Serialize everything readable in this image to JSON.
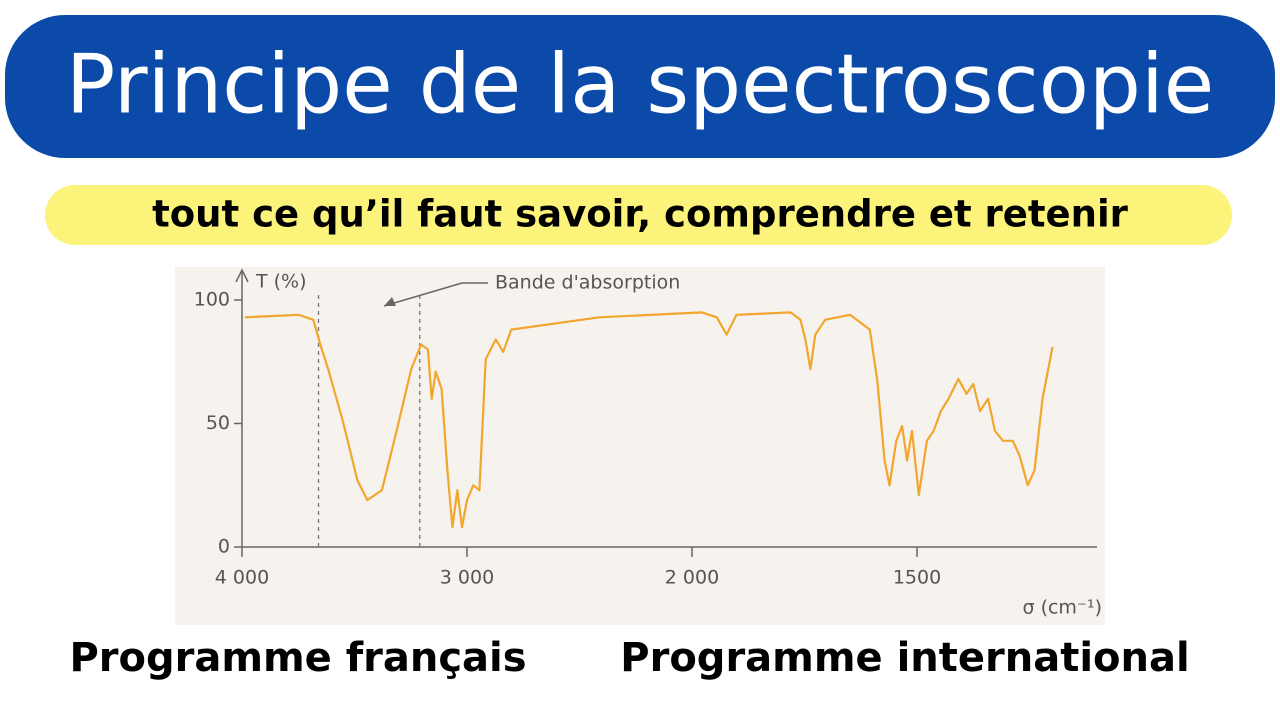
{
  "header": {
    "title": "Principe de la spectroscopie",
    "subtitle": "tout ce qu’il faut savoir, comprendre et retenir"
  },
  "chart_data": {
    "type": "line",
    "ylabel": "T (%)",
    "xlabel": "σ (cm⁻¹)",
    "annotation": "Bande d'absorption",
    "xlim": [
      4000,
      1100
    ],
    "ylim": [
      0,
      100
    ],
    "xticks": [
      {
        "value": 4000,
        "label": "4 000"
      },
      {
        "value": 3000,
        "label": "3 000"
      },
      {
        "value": 2000,
        "label": "2 000"
      },
      1500
    ],
    "yticks": [
      0,
      50,
      100
    ],
    "reference_lines": [
      3660,
      3210
    ],
    "series": [
      {
        "color": "#f2a62e",
        "x": [
          3987,
          3748,
          3683,
          3652,
          3617,
          3552,
          3487,
          3443,
          3378,
          3313,
          3248,
          3204,
          3174,
          3157,
          3139,
          3113,
          3087,
          3065,
          3043,
          3022,
          3000,
          2972,
          2945,
          2917,
          2872,
          2839,
          2803,
          2413,
          1978,
          1945,
          1923,
          1901,
          1781,
          1759,
          1748,
          1737,
          1726,
          1704,
          1649,
          1605,
          1588,
          1572,
          1561,
          1546,
          1533,
          1522,
          1511,
          1496,
          1478,
          1463,
          1447,
          1430,
          1408,
          1390,
          1375,
          1360,
          1342,
          1327,
          1309,
          1287,
          1272,
          1254,
          1239,
          1221,
          1199
        ],
        "values": [
          93,
          94,
          92,
          82,
          72,
          51,
          27,
          19,
          23,
          47,
          72,
          82,
          80,
          60,
          71,
          64,
          31,
          8,
          23,
          8,
          19,
          25,
          23,
          76,
          84,
          79,
          88,
          93,
          95,
          93,
          86,
          94,
          95,
          92,
          84,
          72,
          86,
          92,
          94,
          88,
          67,
          35,
          25,
          43,
          49,
          35,
          47,
          21,
          43,
          47,
          55,
          60,
          68,
          62,
          66,
          55,
          60,
          47,
          43,
          43,
          37,
          25,
          31,
          60,
          81
        ]
      }
    ]
  },
  "footer": {
    "left": "Programme français",
    "right": "Programme international"
  }
}
